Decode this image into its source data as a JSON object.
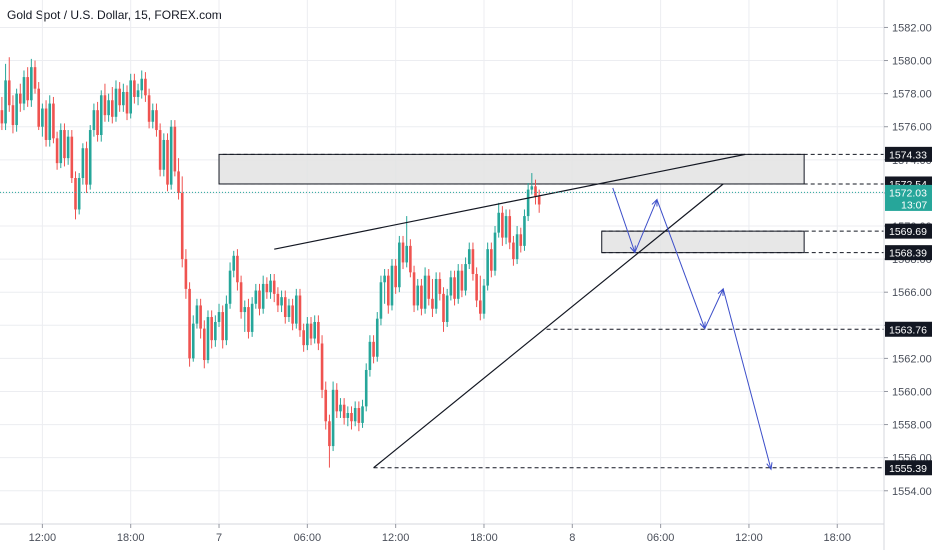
{
  "header": {
    "title": "Gold Spot / U.S. Dollar, 15, FOREX.com"
  },
  "colors": {
    "up": "#26a69a",
    "down": "#ef5350",
    "grid": "#ecedf1",
    "price_line": "#26a69a",
    "arrow": "#3c4ec9",
    "zone_fill": "#e3e3e3",
    "tag_black": "#131722",
    "tag_green": "#26a69a"
  },
  "chart_data": {
    "type": "candlestick",
    "title": "Gold Spot / U.S. Dollar, 15, FOREX.com",
    "ylim": [
      1553.0,
      1583.0
    ],
    "y_ticks": [
      1554,
      1556,
      1558,
      1560,
      1562,
      1564,
      1566,
      1568,
      1570,
      1572,
      1574,
      1576,
      1578,
      1580,
      1582
    ],
    "y_tick_labels": [
      "1554.00",
      "1556.00",
      "1558.00",
      "1560.00",
      "1562.00",
      "1564.00",
      "1566.00",
      "1568.00",
      "1570.00",
      "1572.00",
      "1574.00",
      "1576.00",
      "1578.00",
      "1580.00",
      "1582.00"
    ],
    "x_ticks": [
      {
        "label": "12:00",
        "bar": 11
      },
      {
        "label": "18:00",
        "bar": 35
      },
      {
        "label": "7",
        "bar": 59
      },
      {
        "label": "06:00",
        "bar": 83
      },
      {
        "label": "12:00",
        "bar": 107
      },
      {
        "label": "18:00",
        "bar": 131
      },
      {
        "label": "8",
        "bar": 155
      },
      {
        "label": "06:00",
        "bar": 179
      },
      {
        "label": "12:00",
        "bar": 203
      },
      {
        "label": "18:00",
        "bar": 227
      }
    ],
    "bar_count_axis": 240,
    "candles": [
      [
        1577.0,
        1577.8,
        1575.8,
        1576.2
      ],
      [
        1576.2,
        1579.8,
        1575.8,
        1578.8
      ],
      [
        1578.8,
        1580.2,
        1576.9,
        1577.3
      ],
      [
        1577.3,
        1577.9,
        1575.6,
        1576.1
      ],
      [
        1576.1,
        1578.3,
        1575.7,
        1578.0
      ],
      [
        1578.0,
        1578.6,
        1576.9,
        1577.4
      ],
      [
        1577.4,
        1579.4,
        1577.0,
        1579.0
      ],
      [
        1579.0,
        1579.6,
        1577.2,
        1577.6
      ],
      [
        1577.6,
        1580.1,
        1577.2,
        1579.6
      ],
      [
        1579.6,
        1580.0,
        1578.0,
        1578.3
      ],
      [
        1578.3,
        1578.7,
        1575.8,
        1576.0
      ],
      [
        1576.0,
        1577.4,
        1575.4,
        1577.1
      ],
      [
        1577.1,
        1577.6,
        1574.8,
        1575.2
      ],
      [
        1575.2,
        1577.9,
        1574.8,
        1577.4
      ],
      [
        1577.4,
        1577.8,
        1575.0,
        1575.3
      ],
      [
        1575.3,
        1575.7,
        1573.4,
        1573.8
      ],
      [
        1573.8,
        1576.2,
        1573.5,
        1575.8
      ],
      [
        1575.8,
        1576.2,
        1573.6,
        1574.1
      ],
      [
        1574.1,
        1575.8,
        1573.7,
        1575.4
      ],
      [
        1575.4,
        1575.8,
        1572.6,
        1572.9
      ],
      [
        1572.9,
        1573.3,
        1570.4,
        1571.0
      ],
      [
        1571.0,
        1573.2,
        1570.7,
        1572.9
      ],
      [
        1572.9,
        1575.0,
        1572.5,
        1574.7
      ],
      [
        1574.7,
        1575.1,
        1572.0,
        1572.5
      ],
      [
        1572.5,
        1576.1,
        1572.2,
        1575.8
      ],
      [
        1575.8,
        1577.4,
        1575.4,
        1577.0
      ],
      [
        1577.0,
        1577.5,
        1575.1,
        1575.5
      ],
      [
        1575.5,
        1578.2,
        1575.1,
        1577.9
      ],
      [
        1577.9,
        1578.6,
        1576.3,
        1576.7
      ],
      [
        1576.7,
        1578.0,
        1576.3,
        1577.6
      ],
      [
        1577.6,
        1578.4,
        1576.2,
        1576.6
      ],
      [
        1576.6,
        1578.8,
        1576.3,
        1578.3
      ],
      [
        1578.3,
        1578.7,
        1576.9,
        1577.3
      ],
      [
        1577.3,
        1578.6,
        1576.9,
        1578.1
      ],
      [
        1578.1,
        1578.5,
        1576.4,
        1576.8
      ],
      [
        1576.8,
        1579.2,
        1576.5,
        1578.8
      ],
      [
        1578.8,
        1579.2,
        1577.4,
        1577.8
      ],
      [
        1577.8,
        1578.6,
        1577.3,
        1578.2
      ],
      [
        1578.2,
        1579.4,
        1577.7,
        1578.9
      ],
      [
        1578.9,
        1579.3,
        1577.5,
        1577.9
      ],
      [
        1577.9,
        1578.3,
        1575.9,
        1576.3
      ],
      [
        1576.3,
        1577.4,
        1575.9,
        1577.0
      ],
      [
        1577.0,
        1577.4,
        1575.4,
        1575.8
      ],
      [
        1575.8,
        1576.2,
        1573.0,
        1573.4
      ],
      [
        1573.4,
        1575.6,
        1573.0,
        1575.2
      ],
      [
        1575.2,
        1575.6,
        1572.1,
        1572.5
      ],
      [
        1572.5,
        1576.4,
        1572.2,
        1576.0
      ],
      [
        1576.0,
        1576.4,
        1573.0,
        1573.3
      ],
      [
        1573.3,
        1574.1,
        1571.6,
        1572.0
      ],
      [
        1572.0,
        1573.0,
        1567.5,
        1568.0
      ],
      [
        1568.0,
        1568.6,
        1565.6,
        1566.2
      ],
      [
        1566.2,
        1566.6,
        1561.5,
        1562.0
      ],
      [
        1562.0,
        1564.6,
        1561.8,
        1564.1
      ],
      [
        1564.1,
        1565.6,
        1563.8,
        1565.2
      ],
      [
        1565.2,
        1565.6,
        1563.2,
        1563.8
      ],
      [
        1563.8,
        1564.3,
        1561.4,
        1561.9
      ],
      [
        1561.9,
        1564.9,
        1561.7,
        1564.5
      ],
      [
        1564.5,
        1564.9,
        1562.6,
        1563.1
      ],
      [
        1563.1,
        1564.6,
        1562.7,
        1564.2
      ],
      [
        1564.2,
        1565.3,
        1563.9,
        1564.8
      ],
      [
        1564.8,
        1565.2,
        1562.6,
        1563.1
      ],
      [
        1563.1,
        1565.8,
        1562.8,
        1565.3
      ],
      [
        1565.3,
        1567.8,
        1565.0,
        1567.3
      ],
      [
        1567.3,
        1568.5,
        1566.9,
        1568.2
      ],
      [
        1568.2,
        1568.6,
        1566.1,
        1566.6
      ],
      [
        1566.6,
        1567.0,
        1564.4,
        1564.8
      ],
      [
        1564.8,
        1565.5,
        1563.6,
        1565.1
      ],
      [
        1565.1,
        1565.6,
        1563.2,
        1563.6
      ],
      [
        1563.6,
        1565.7,
        1563.3,
        1565.3
      ],
      [
        1565.3,
        1566.5,
        1565.0,
        1566.1
      ],
      [
        1566.1,
        1566.5,
        1564.6,
        1565.0
      ],
      [
        1565.0,
        1567.0,
        1564.7,
        1566.5
      ],
      [
        1566.5,
        1566.9,
        1565.6,
        1566.0
      ],
      [
        1566.0,
        1567.1,
        1565.6,
        1566.7
      ],
      [
        1566.7,
        1567.1,
        1565.4,
        1565.9
      ],
      [
        1565.9,
        1566.3,
        1564.8,
        1565.2
      ],
      [
        1565.2,
        1566.1,
        1564.8,
        1565.7
      ],
      [
        1565.7,
        1566.1,
        1564.1,
        1564.5
      ],
      [
        1564.5,
        1565.6,
        1564.2,
        1565.2
      ],
      [
        1565.2,
        1565.6,
        1563.7,
        1564.1
      ],
      [
        1564.1,
        1566.2,
        1563.8,
        1565.8
      ],
      [
        1565.8,
        1566.2,
        1563.3,
        1563.7
      ],
      [
        1563.7,
        1564.1,
        1562.4,
        1562.8
      ],
      [
        1562.8,
        1564.5,
        1562.5,
        1564.1
      ],
      [
        1564.1,
        1564.5,
        1562.8,
        1563.2
      ],
      [
        1563.2,
        1564.6,
        1562.9,
        1564.2
      ],
      [
        1564.2,
        1564.6,
        1562.5,
        1562.9
      ],
      [
        1562.9,
        1563.4,
        1559.6,
        1560.1
      ],
      [
        1560.1,
        1560.6,
        1557.7,
        1558.2
      ],
      [
        1558.2,
        1558.6,
        1555.4,
        1556.7
      ],
      [
        1556.7,
        1560.6,
        1556.4,
        1560.1
      ],
      [
        1560.1,
        1560.5,
        1558.4,
        1558.8
      ],
      [
        1558.8,
        1559.6,
        1558.4,
        1559.2
      ],
      [
        1559.2,
        1559.6,
        1558.0,
        1558.4
      ],
      [
        1558.4,
        1559.1,
        1557.9,
        1558.7
      ],
      [
        1558.7,
        1559.1,
        1557.7,
        1558.2
      ],
      [
        1558.2,
        1559.4,
        1557.9,
        1559.0
      ],
      [
        1559.0,
        1559.4,
        1557.6,
        1558.1
      ],
      [
        1558.1,
        1559.5,
        1557.8,
        1559.1
      ],
      [
        1559.1,
        1561.7,
        1558.8,
        1561.3
      ],
      [
        1561.3,
        1563.4,
        1560.9,
        1563.0
      ],
      [
        1563.0,
        1563.4,
        1561.7,
        1562.1
      ],
      [
        1562.1,
        1564.8,
        1561.8,
        1564.4
      ],
      [
        1564.4,
        1567.0,
        1564.0,
        1566.6
      ],
      [
        1566.6,
        1567.4,
        1565.3,
        1567.0
      ],
      [
        1567.0,
        1567.4,
        1564.7,
        1565.2
      ],
      [
        1565.2,
        1568.0,
        1564.9,
        1567.6
      ],
      [
        1567.6,
        1568.0,
        1565.9,
        1566.3
      ],
      [
        1566.3,
        1569.4,
        1566.0,
        1569.0
      ],
      [
        1569.0,
        1569.4,
        1567.4,
        1567.8
      ],
      [
        1567.8,
        1570.6,
        1567.5,
        1568.8
      ],
      [
        1568.8,
        1569.2,
        1566.9,
        1567.2
      ],
      [
        1567.2,
        1567.6,
        1564.8,
        1565.2
      ],
      [
        1565.2,
        1566.8,
        1564.9,
        1566.4
      ],
      [
        1566.4,
        1566.8,
        1564.6,
        1565.0
      ],
      [
        1565.0,
        1567.5,
        1564.7,
        1567.0
      ],
      [
        1567.0,
        1567.4,
        1565.2,
        1565.6
      ],
      [
        1565.6,
        1566.8,
        1564.5,
        1565.0
      ],
      [
        1565.0,
        1567.2,
        1564.7,
        1566.8
      ],
      [
        1566.8,
        1567.2,
        1565.5,
        1565.9
      ],
      [
        1565.9,
        1566.3,
        1563.6,
        1564.2
      ],
      [
        1564.2,
        1566.2,
        1563.9,
        1565.8
      ],
      [
        1565.8,
        1567.3,
        1565.5,
        1566.9
      ],
      [
        1566.9,
        1567.3,
        1565.2,
        1565.6
      ],
      [
        1565.6,
        1567.7,
        1565.3,
        1567.3
      ],
      [
        1567.3,
        1567.7,
        1565.7,
        1566.1
      ],
      [
        1566.1,
        1568.1,
        1565.8,
        1567.7
      ],
      [
        1567.7,
        1569.0,
        1567.4,
        1568.6
      ],
      [
        1568.6,
        1569.0,
        1566.7,
        1567.1
      ],
      [
        1567.1,
        1567.5,
        1565.1,
        1565.5
      ],
      [
        1565.5,
        1567.0,
        1564.3,
        1564.7
      ],
      [
        1564.7,
        1566.8,
        1564.4,
        1566.4
      ],
      [
        1566.4,
        1569.0,
        1566.1,
        1568.6
      ],
      [
        1568.6,
        1569.0,
        1566.9,
        1567.3
      ],
      [
        1567.3,
        1570.0,
        1567.0,
        1569.6
      ],
      [
        1569.6,
        1571.4,
        1569.3,
        1570.8
      ],
      [
        1570.8,
        1571.2,
        1568.8,
        1569.3
      ],
      [
        1569.3,
        1571.0,
        1568.9,
        1570.6
      ],
      [
        1570.6,
        1571.0,
        1568.6,
        1569.0
      ],
      [
        1569.0,
        1569.4,
        1567.6,
        1568.0
      ],
      [
        1568.0,
        1570.0,
        1567.7,
        1569.5
      ],
      [
        1569.5,
        1569.9,
        1568.4,
        1568.8
      ],
      [
        1568.8,
        1571.0,
        1568.5,
        1570.6
      ],
      [
        1570.6,
        1572.6,
        1570.3,
        1572.2
      ],
      [
        1572.2,
        1573.2,
        1571.9,
        1572.4
      ],
      [
        1572.4,
        1572.8,
        1571.3,
        1571.8
      ],
      [
        1571.8,
        1572.2,
        1570.8,
        1571.3
      ]
    ],
    "horizontal_levels": [
      {
        "value": 1574.33,
        "label": "1574.33",
        "style": "dashed",
        "x_from_bar": 60
      },
      {
        "value": 1572.54,
        "label": "1572.54",
        "style": "dashed",
        "x_from_bar": 60
      },
      {
        "value": 1569.69,
        "label": "1569.69",
        "style": "dashed",
        "x_from_bar": 163
      },
      {
        "value": 1568.39,
        "label": "1568.39",
        "style": "dashed",
        "x_from_bar": 163
      },
      {
        "value": 1563.76,
        "label": "1563.76",
        "style": "dashed",
        "x_from_bar": 148
      },
      {
        "value": 1555.39,
        "label": "1555.39",
        "style": "dashed",
        "x_from_bar": 101
      }
    ],
    "zones": [
      {
        "from_bar": 59,
        "to_bar": 218,
        "top": 1574.33,
        "bottom": 1572.54
      },
      {
        "from_bar": 163,
        "to_bar": 218,
        "top": 1569.69,
        "bottom": 1568.39
      }
    ],
    "trendlines": [
      {
        "from": {
          "bar": 74,
          "value": 1568.6
        },
        "to": {
          "bar": 202,
          "value": 1574.33
        }
      },
      {
        "from": {
          "bar": 101,
          "value": 1555.39
        },
        "to": {
          "bar": 196,
          "value": 1572.54
        }
      }
    ],
    "projection_path": [
      {
        "bar": 166,
        "value": 1572.3
      },
      {
        "bar": 172,
        "value": 1568.4
      },
      {
        "bar": 178,
        "value": 1571.6
      },
      {
        "bar": 191,
        "value": 1563.8
      },
      {
        "bar": 196,
        "value": 1566.2
      },
      {
        "bar": 209,
        "value": 1555.3
      }
    ],
    "current_price": {
      "value": 1572.03,
      "label": "1572.03",
      "countdown": "13:07"
    }
  }
}
